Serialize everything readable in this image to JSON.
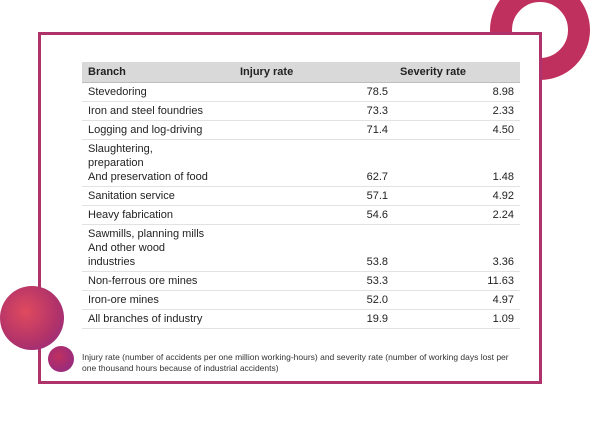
{
  "table": {
    "headers": {
      "branch": "Branch",
      "injury": "Injury rate",
      "severity": "Severity rate"
    },
    "rows": [
      {
        "branch": [
          "Stevedoring"
        ],
        "injury": "78.5",
        "severity": "8.98"
      },
      {
        "branch": [
          "Iron and steel foundries"
        ],
        "injury": "73.3",
        "severity": "2.33"
      },
      {
        "branch": [
          "Logging and log-driving"
        ],
        "injury": "71.4",
        "severity": "4.50"
      },
      {
        "branch": [
          "Slaughtering,",
          "preparation",
          "And preservation of food"
        ],
        "injury": "62.7",
        "severity": "1.48"
      },
      {
        "branch": [
          "Sanitation service"
        ],
        "injury": "57.1",
        "severity": "4.92"
      },
      {
        "branch": [
          "Heavy fabrication"
        ],
        "injury": "54.6",
        "severity": "2.24"
      },
      {
        "branch": [
          "Sawmills, planning mills",
          "And other wood",
          "industries"
        ],
        "injury": "53.8",
        "severity": "3.36"
      },
      {
        "branch": [
          "Non-ferrous ore mines"
        ],
        "injury": "53.3",
        "severity": "11.63"
      },
      {
        "branch": [
          "Iron-ore mines"
        ],
        "injury": "52.0",
        "severity": "4.97"
      },
      {
        "branch": [
          "All branches of industry"
        ],
        "injury": "19.9",
        "severity": "1.09"
      }
    ]
  },
  "footnote": "Injury rate (number of accidents per one million working-hours) and severity rate (number of working days lost per one thousand hours because of industrial accidents)",
  "colors": {
    "accent": "#b0326a",
    "header_bg": "#d9d9d9"
  }
}
